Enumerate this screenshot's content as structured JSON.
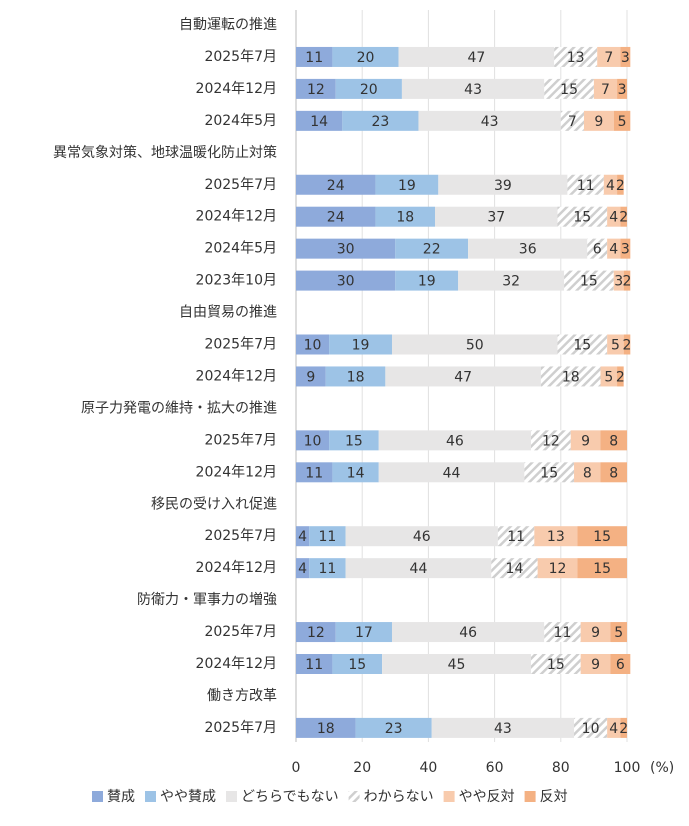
{
  "chart_data": {
    "type": "stacked-barh",
    "categories": [
      "自動運転の推進",
      "2025年7月",
      "2024年12月",
      "2024年5月",
      "異常気象対策、地球温暖化防止対策",
      "2025年7月",
      "2024年12月",
      "2024年5月",
      "2023年10月",
      "自由貿易の推進",
      "2025年7月",
      "2024年12月",
      "原子力発電の維持・拡大の推進",
      "2025年7月",
      "2024年12月",
      "移民の受け入れ促進",
      "2025年7月",
      "2024年12月",
      "防衛力・軍事力の増強",
      "2025年7月",
      "2024年12月",
      "働き方改革",
      "2025年7月"
    ],
    "series": [
      {
        "name": "賛成",
        "color": "#8eaadb",
        "values": [
          null,
          11,
          12,
          14,
          null,
          24,
          24,
          30,
          30,
          null,
          10,
          9,
          null,
          10,
          11,
          null,
          4,
          4,
          null,
          12,
          11,
          null,
          18
        ]
      },
      {
        "name": "やや賛成",
        "color": "#9dc3e6",
        "values": [
          null,
          20,
          20,
          23,
          null,
          19,
          18,
          22,
          19,
          null,
          19,
          18,
          null,
          15,
          14,
          null,
          11,
          11,
          null,
          17,
          15,
          null,
          23
        ]
      },
      {
        "name": "どちらでもない",
        "color": "#e7e6e6",
        "values": [
          null,
          47,
          43,
          43,
          null,
          39,
          37,
          36,
          32,
          null,
          50,
          47,
          null,
          46,
          44,
          null,
          46,
          44,
          null,
          46,
          45,
          null,
          43
        ]
      },
      {
        "name": "わからない",
        "color": "#d0d0d0",
        "hatch": true,
        "values": [
          null,
          13,
          15,
          7,
          null,
          11,
          15,
          6,
          15,
          null,
          15,
          18,
          null,
          12,
          15,
          null,
          11,
          14,
          null,
          11,
          15,
          null,
          10
        ]
      },
      {
        "name": "やや反対",
        "color": "#f8cbad",
        "values": [
          null,
          7,
          7,
          9,
          null,
          4,
          4,
          4,
          3,
          null,
          5,
          5,
          null,
          9,
          8,
          null,
          13,
          12,
          null,
          9,
          9,
          null,
          4
        ]
      },
      {
        "name": "反対",
        "color": "#f4b183",
        "values": [
          null,
          3,
          3,
          5,
          null,
          2,
          2,
          3,
          2,
          null,
          2,
          2,
          null,
          8,
          8,
          null,
          15,
          15,
          null,
          5,
          6,
          null,
          2
        ]
      }
    ],
    "xlim": [
      0,
      100
    ],
    "xticks": [
      0,
      20,
      40,
      60,
      80,
      100
    ],
    "xlabel": "(%)",
    "grid": true,
    "legend": "bottom"
  }
}
